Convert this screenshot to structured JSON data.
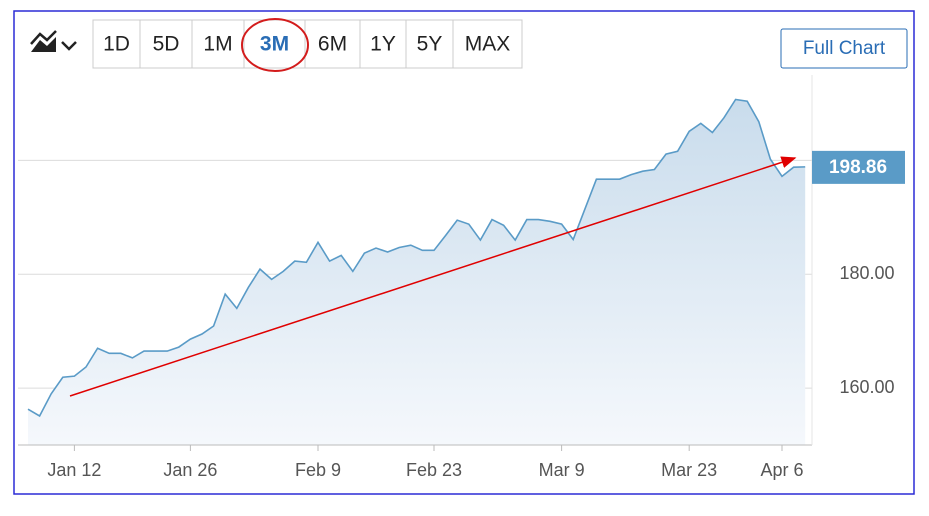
{
  "toolbar": {
    "ranges": [
      "1D",
      "5D",
      "1M",
      "3M",
      "6M",
      "1Y",
      "5Y",
      "MAX"
    ],
    "selected": 3,
    "full_chart": "Full Chart"
  },
  "chart_data": {
    "type": "area",
    "categories": [
      null,
      null,
      null,
      null,
      "Jan 12",
      null,
      null,
      null,
      null,
      null,
      null,
      null,
      null,
      null,
      "Jan 26",
      null,
      null,
      null,
      null,
      null,
      null,
      null,
      null,
      null,
      null,
      "Feb 9",
      null,
      null,
      null,
      null,
      null,
      null,
      null,
      null,
      null,
      "Feb 23",
      null,
      null,
      null,
      null,
      null,
      null,
      null,
      null,
      null,
      null,
      "Mar 9",
      null,
      null,
      null,
      null,
      null,
      null,
      null,
      null,
      null,
      null,
      "Mar 23",
      null,
      null,
      null,
      null,
      null,
      null,
      null,
      "Apr 6",
      null,
      null
    ],
    "series": [
      {
        "color": "#5a9bc7",
        "values": [
          156.3,
          155.1,
          159.0,
          161.9,
          162.1,
          163.7,
          167.0,
          166.1,
          166.1,
          165.3,
          166.5,
          166.5,
          166.5,
          167.2,
          168.6,
          169.5,
          170.9,
          176.5,
          174.0,
          177.7,
          180.9,
          179.1,
          180.5,
          182.3,
          182.1,
          185.6,
          182.3,
          183.3,
          180.5,
          183.7,
          184.6,
          183.9,
          184.7,
          185.1,
          184.2,
          184.2,
          186.8,
          189.5,
          188.8,
          186.0,
          189.6,
          188.6,
          186.0,
          189.6,
          189.6,
          189.3,
          188.8,
          186.1,
          191.4,
          196.7,
          196.7,
          196.7,
          197.5,
          198.1,
          198.4,
          201.1,
          201.6,
          205.1,
          206.5,
          204.9,
          207.5,
          210.7,
          210.4,
          206.8,
          200.2,
          197.2,
          198.8,
          198.86
        ]
      }
    ],
    "ylim": [
      150,
      215
    ],
    "yticks": [
      {
        "value": 160,
        "label": "160.00"
      },
      {
        "value": 180,
        "label": "180.00"
      }
    ],
    "ygrid": [
      160,
      180,
      200
    ],
    "last_price": 198.86
  }
}
